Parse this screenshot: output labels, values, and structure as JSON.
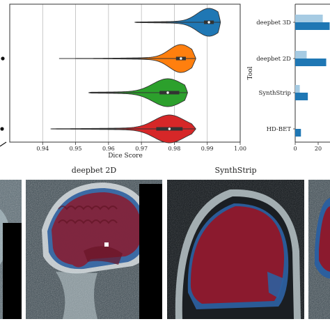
{
  "chart_data": [
    {
      "type": "violin",
      "xlabel": "Dice Score",
      "xlim": [
        0.93,
        1.0
      ],
      "xticks": [
        "0.94",
        "0.95",
        "0.96",
        "0.97",
        "0.98",
        "0.99",
        "1.00"
      ],
      "grid": true,
      "series": [
        {
          "color": "#1f77b4",
          "min": 0.968,
          "q1": 0.989,
          "median": 0.9905,
          "q3": 0.992,
          "max": 0.994,
          "spread": 0.0035
        },
        {
          "color": "#ff7f0e",
          "min": 0.945,
          "q1": 0.9805,
          "median": 0.982,
          "q3": 0.9835,
          "max": 0.9865,
          "spread": 0.0035
        },
        {
          "color": "#2ca02c",
          "min": 0.954,
          "q1": 0.9755,
          "median": 0.978,
          "q3": 0.9815,
          "max": 0.984,
          "spread": 0.0045
        },
        {
          "color": "#d62728",
          "min": 0.9425,
          "q1": 0.9745,
          "median": 0.9785,
          "q3": 0.9825,
          "max": 0.9865,
          "spread": 0.0045
        }
      ]
    },
    {
      "type": "bar",
      "orientation": "horizontal",
      "ylabel": "Tool",
      "categories": [
        "deepbet 3D",
        "deepbet 2D",
        "SynthStrip",
        "HD-BET"
      ],
      "xticks": [
        "0",
        "20"
      ],
      "xlim": [
        0,
        30
      ],
      "series": [
        {
          "color": "#a6cbe3",
          "values": [
            24,
            10,
            4,
            0
          ]
        },
        {
          "color": "#1f77b4",
          "values": [
            30,
            27,
            11,
            5
          ]
        }
      ]
    }
  ],
  "images": {
    "titles": [
      "deepbet 2D",
      "SynthStrip"
    ],
    "overlay_colors": {
      "brain": "#8b1a2e",
      "diff": "#2c5f9e"
    }
  }
}
